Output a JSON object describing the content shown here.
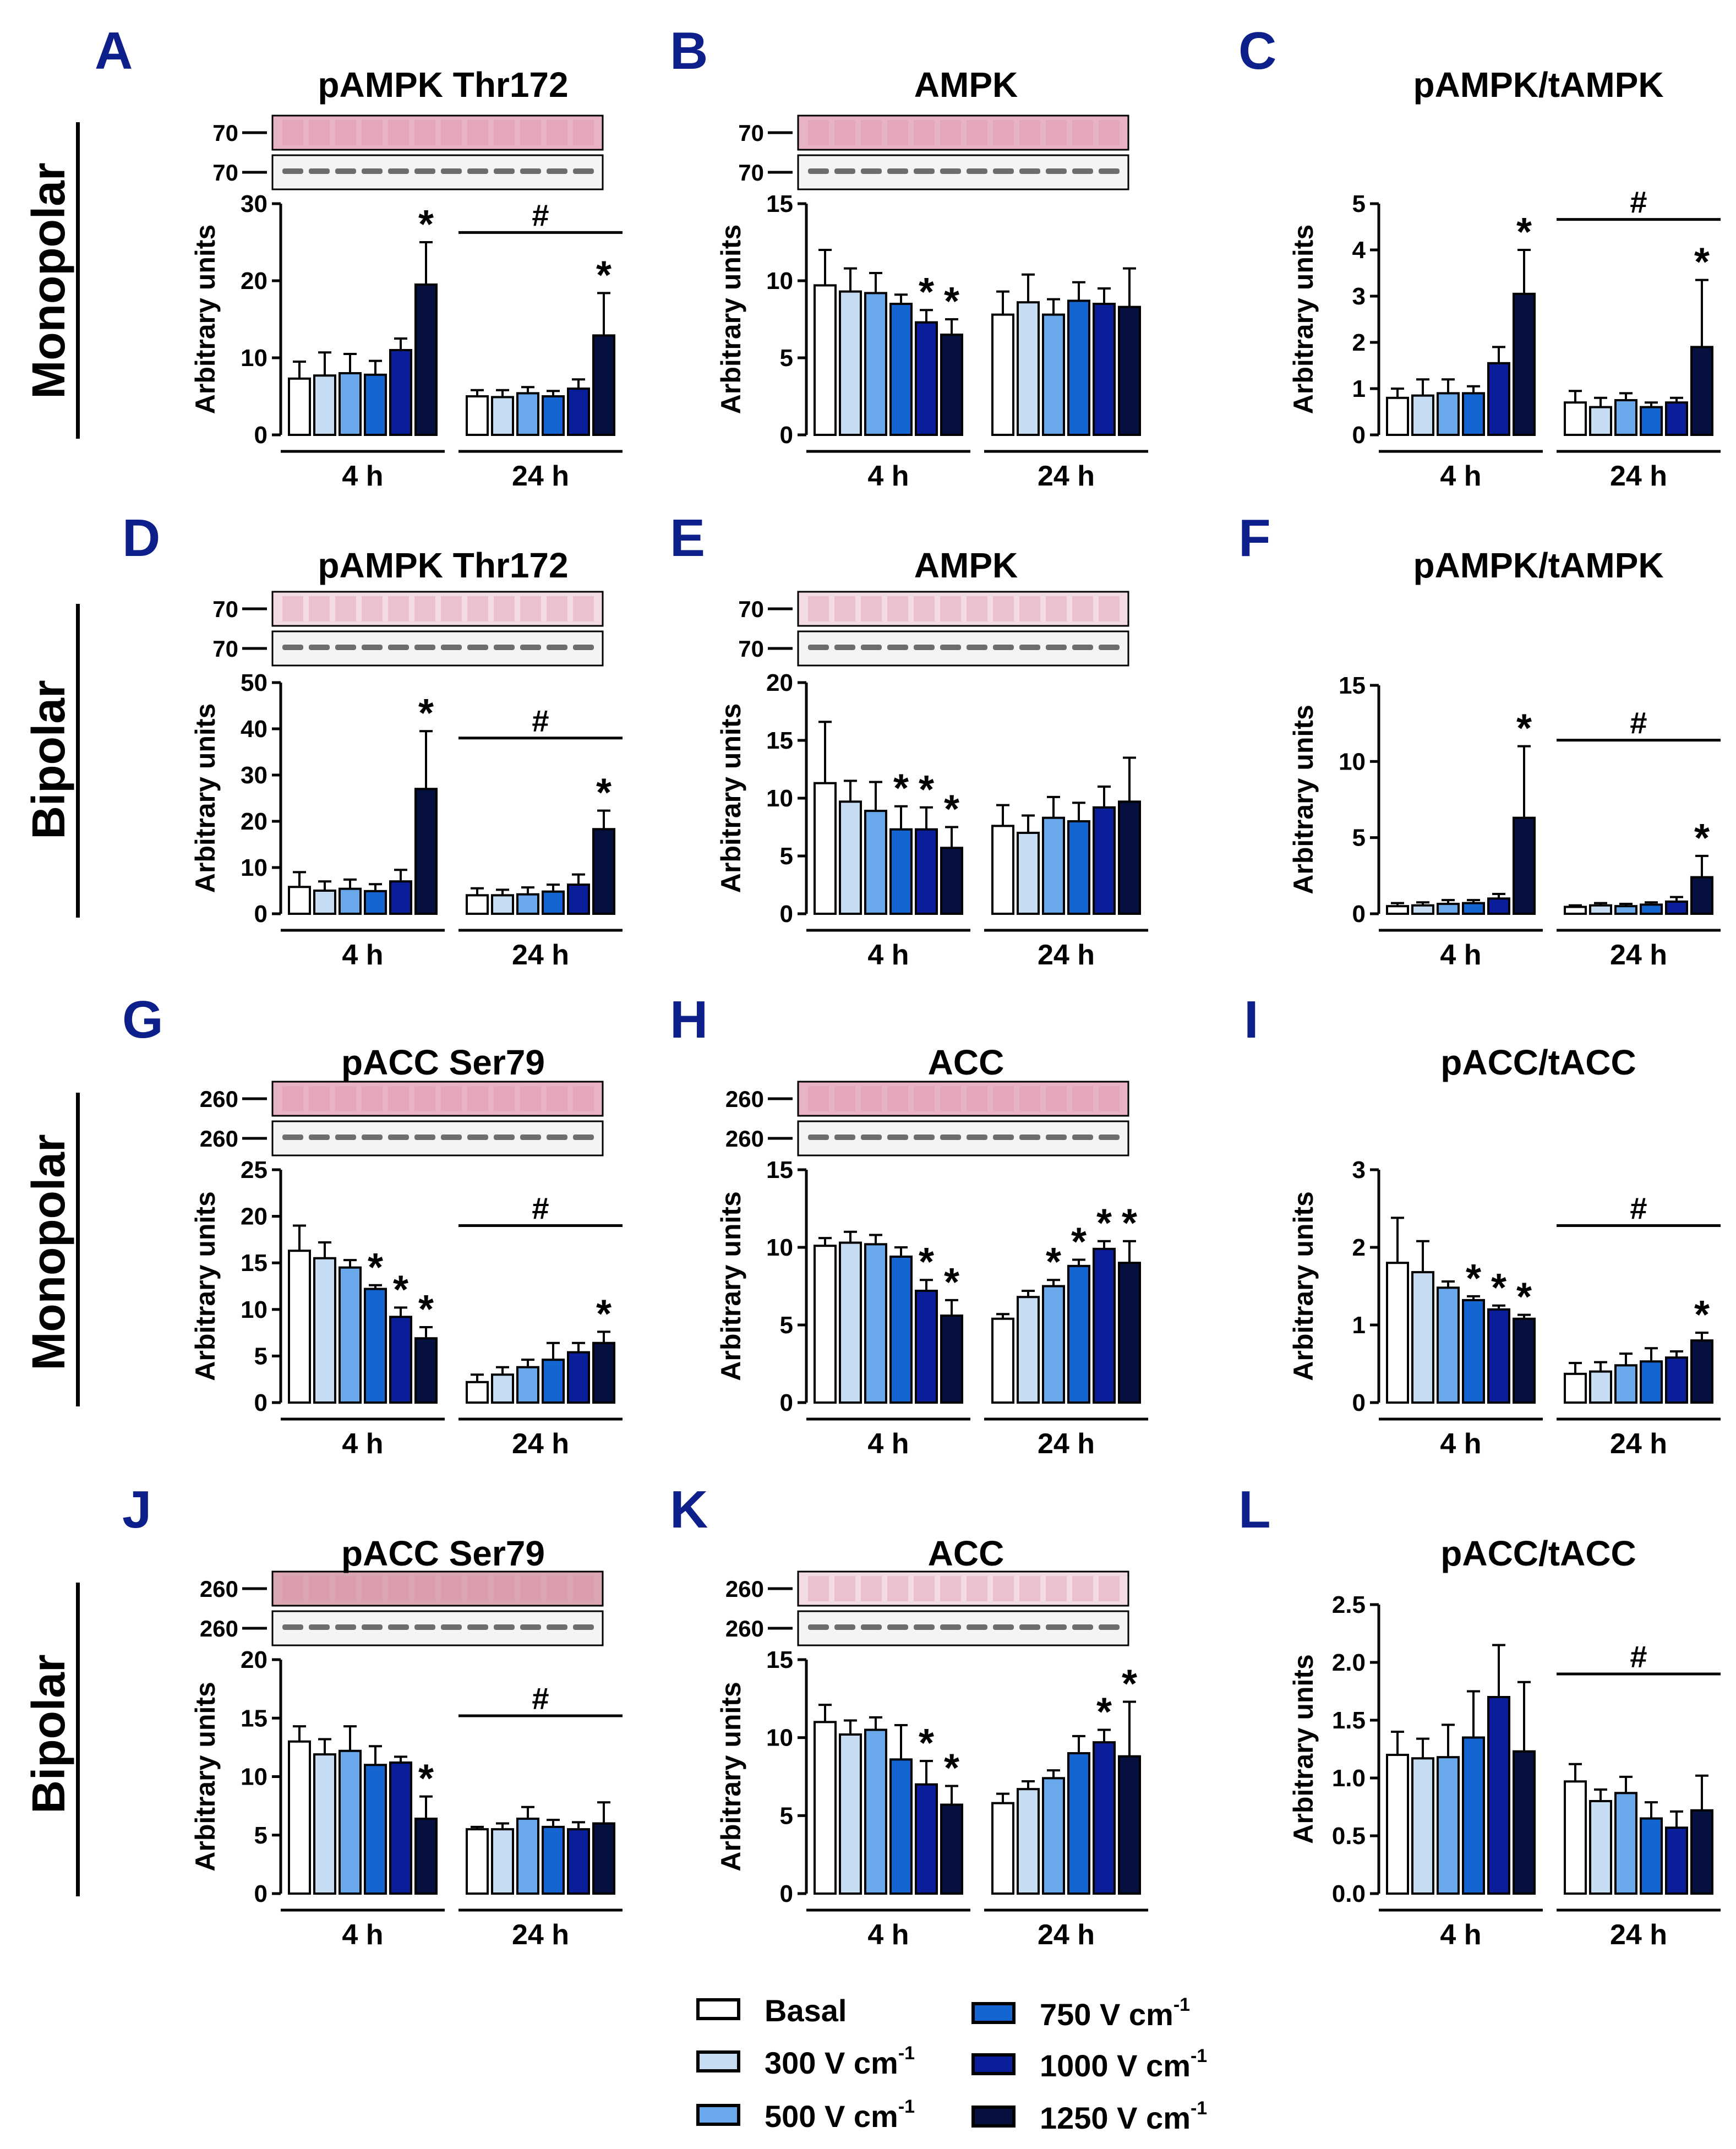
{
  "figure": {
    "row_labels": [
      "Monopolar",
      "Bipolar",
      "Monopolar",
      "Bipolar"
    ],
    "time_groups": [
      "4 h",
      "24 h"
    ],
    "ylabel": "Arbitrary units",
    "colors": [
      "#ffffff",
      "#c6dcf3",
      "#6aa8ec",
      "#1565d0",
      "#0b1e9a",
      "#06103f"
    ]
  },
  "legend": {
    "items": [
      {
        "label": "Basal",
        "exp": ""
      },
      {
        "label": "300 V cm",
        "exp": "-1"
      },
      {
        "label": "500 V cm",
        "exp": "-1"
      },
      {
        "label": "750 V cm",
        "exp": "-1"
      },
      {
        "label": "1000 V cm",
        "exp": "-1"
      },
      {
        "label": "1250 V cm",
        "exp": "-1"
      }
    ]
  },
  "chart_data": [
    {
      "panel": "A",
      "title": "pAMPK Thr172",
      "type": "bar",
      "blot_markers": [
        "70",
        "70"
      ],
      "blot_style": "ponceau",
      "ylim": [
        0,
        30
      ],
      "yticks": [
        "0",
        "10",
        "20",
        "30"
      ],
      "series": [
        {
          "name": "4 h",
          "values": [
            7.3,
            7.7,
            8.0,
            7.8,
            11.0,
            19.5
          ],
          "errors": [
            2.2,
            3.0,
            2.5,
            1.8,
            1.5,
            5.5
          ],
          "sig": [
            "",
            "",
            "",
            "",
            "",
            "*"
          ]
        },
        {
          "name": "24 h",
          "values": [
            5.0,
            4.9,
            5.4,
            5.0,
            6.0,
            12.9
          ],
          "errors": [
            0.8,
            0.9,
            0.8,
            0.7,
            1.2,
            5.5
          ],
          "sig": [
            "",
            "",
            "",
            "",
            "",
            "*"
          ]
        }
      ],
      "hash_24h": "#"
    },
    {
      "panel": "B",
      "title": "AMPK",
      "type": "bar",
      "blot_markers": [
        "70",
        "70"
      ],
      "blot_style": "ponceau",
      "ylim": [
        0,
        15
      ],
      "yticks": [
        "0",
        "5",
        "10",
        "15"
      ],
      "series": [
        {
          "name": "4 h",
          "values": [
            9.7,
            9.3,
            9.2,
            8.5,
            7.3,
            6.5
          ],
          "errors": [
            2.3,
            1.5,
            1.3,
            0.6,
            0.8,
            1.0
          ],
          "sig": [
            "",
            "",
            "",
            "",
            "*",
            "*"
          ]
        },
        {
          "name": "24 h",
          "values": [
            7.8,
            8.6,
            7.8,
            8.7,
            8.5,
            8.3
          ],
          "errors": [
            1.5,
            1.8,
            1.0,
            1.2,
            1.0,
            2.5
          ],
          "sig": [
            "",
            "",
            "",
            "",
            "",
            ""
          ]
        }
      ],
      "hash_24h": ""
    },
    {
      "panel": "C",
      "title": "pAMPK/tAMPK",
      "type": "bar",
      "blot_markers": [],
      "blot_style": "none",
      "ylim": [
        0,
        5
      ],
      "yticks": [
        "0",
        "1",
        "2",
        "3",
        "4",
        "5"
      ],
      "series": [
        {
          "name": "4 h",
          "values": [
            0.8,
            0.85,
            0.9,
            0.9,
            1.55,
            3.05
          ],
          "errors": [
            0.2,
            0.35,
            0.3,
            0.15,
            0.35,
            0.95
          ],
          "sig": [
            "",
            "",
            "",
            "",
            "",
            "*"
          ]
        },
        {
          "name": "24 h",
          "values": [
            0.7,
            0.6,
            0.75,
            0.6,
            0.7,
            1.9
          ],
          "errors": [
            0.25,
            0.2,
            0.15,
            0.1,
            0.1,
            1.45
          ],
          "sig": [
            "",
            "",
            "",
            "",
            "",
            "*"
          ]
        }
      ],
      "hash_24h": "#"
    },
    {
      "panel": "D",
      "title": "pAMPK Thr172",
      "type": "bar",
      "blot_markers": [
        "70",
        "70"
      ],
      "blot_style": "ponceau_light",
      "ylim": [
        0,
        50
      ],
      "yticks": [
        "0",
        "10",
        "20",
        "30",
        "40",
        "50"
      ],
      "series": [
        {
          "name": "4 h",
          "values": [
            5.8,
            5.0,
            5.4,
            4.9,
            7.0,
            27.0
          ],
          "errors": [
            3.2,
            2.0,
            2.0,
            1.5,
            2.5,
            12.5
          ],
          "sig": [
            "",
            "",
            "",
            "",
            "",
            "*"
          ]
        },
        {
          "name": "24 h",
          "values": [
            4.0,
            4.0,
            4.2,
            4.8,
            6.3,
            18.3
          ],
          "errors": [
            1.5,
            1.2,
            1.5,
            1.5,
            2.2,
            4.0
          ],
          "sig": [
            "",
            "",
            "",
            "",
            "",
            "*"
          ]
        }
      ],
      "hash_24h": "#"
    },
    {
      "panel": "E",
      "title": "AMPK",
      "type": "bar",
      "blot_markers": [
        "70",
        "70"
      ],
      "blot_style": "ponceau_light",
      "ylim": [
        0,
        20
      ],
      "yticks": [
        "0",
        "5",
        "10",
        "15",
        "20"
      ],
      "series": [
        {
          "name": "4 h",
          "values": [
            11.3,
            9.7,
            8.9,
            7.3,
            7.3,
            5.7
          ],
          "errors": [
            5.3,
            1.8,
            2.5,
            2.0,
            1.9,
            1.8
          ],
          "sig": [
            "",
            "",
            "",
            "*",
            "*",
            "*"
          ]
        },
        {
          "name": "24 h",
          "values": [
            7.6,
            7.0,
            8.3,
            8.0,
            9.2,
            9.7
          ],
          "errors": [
            1.8,
            1.5,
            1.8,
            1.6,
            1.8,
            3.8
          ],
          "sig": [
            "",
            "",
            "",
            "",
            "",
            ""
          ]
        }
      ],
      "hash_24h": ""
    },
    {
      "panel": "F",
      "title": "pAMPK/tAMPK",
      "type": "bar",
      "blot_markers": [],
      "blot_style": "none",
      "ylim": [
        0,
        15
      ],
      "yticks": [
        "0",
        "5",
        "10",
        "15"
      ],
      "series": [
        {
          "name": "4 h",
          "values": [
            0.5,
            0.55,
            0.65,
            0.7,
            1.0,
            6.3
          ],
          "errors": [
            0.2,
            0.2,
            0.25,
            0.2,
            0.3,
            4.7
          ],
          "sig": [
            "",
            "",
            "",
            "",
            "",
            "*"
          ]
        },
        {
          "name": "24 h",
          "values": [
            0.45,
            0.55,
            0.5,
            0.6,
            0.8,
            2.4
          ],
          "errors": [
            0.1,
            0.15,
            0.15,
            0.15,
            0.3,
            1.4
          ],
          "sig": [
            "",
            "",
            "",
            "",
            "",
            "*"
          ]
        }
      ],
      "hash_24h": "#"
    },
    {
      "panel": "G",
      "title": "pACC Ser79",
      "type": "bar",
      "blot_markers": [
        "260",
        "260"
      ],
      "blot_style": "ponceau",
      "ylim": [
        0,
        25
      ],
      "yticks": [
        "0",
        "5",
        "10",
        "15",
        "20",
        "25"
      ],
      "series": [
        {
          "name": "4 h",
          "values": [
            16.3,
            15.5,
            14.5,
            12.2,
            9.2,
            6.9
          ],
          "errors": [
            2.7,
            1.7,
            0.8,
            0.4,
            1.0,
            1.2
          ],
          "sig": [
            "",
            "",
            "",
            "*",
            "*",
            "*"
          ]
        },
        {
          "name": "24 h",
          "values": [
            2.2,
            3.0,
            3.8,
            4.6,
            5.4,
            6.4
          ],
          "errors": [
            0.8,
            0.8,
            0.8,
            1.8,
            1.0,
            1.2
          ],
          "sig": [
            "",
            "",
            "",
            "",
            "",
            "*"
          ]
        }
      ],
      "hash_24h": "#"
    },
    {
      "panel": "H",
      "title": "ACC",
      "type": "bar",
      "blot_markers": [
        "260",
        "260"
      ],
      "blot_style": "ponceau",
      "ylim": [
        0,
        15
      ],
      "yticks": [
        "0",
        "5",
        "10",
        "15"
      ],
      "series": [
        {
          "name": "4 h",
          "values": [
            10.1,
            10.3,
            10.2,
            9.4,
            7.2,
            5.6
          ],
          "errors": [
            0.5,
            0.7,
            0.6,
            0.6,
            0.7,
            1.0
          ],
          "sig": [
            "",
            "",
            "",
            "",
            "*",
            "*"
          ]
        },
        {
          "name": "24 h",
          "values": [
            5.4,
            6.8,
            7.5,
            8.8,
            9.9,
            9.0
          ],
          "errors": [
            0.3,
            0.4,
            0.4,
            0.4,
            0.5,
            1.4
          ],
          "sig": [
            "",
            "",
            "*",
            "*",
            "*",
            "*"
          ]
        }
      ],
      "hash_24h": ""
    },
    {
      "panel": "I",
      "title": "pACC/tACC",
      "type": "bar",
      "blot_markers": [],
      "blot_style": "none",
      "ylim": [
        0,
        3
      ],
      "yticks": [
        "0",
        "1",
        "2",
        "3"
      ],
      "series": [
        {
          "name": "4 h",
          "values": [
            1.8,
            1.68,
            1.48,
            1.32,
            1.2,
            1.08
          ],
          "errors": [
            0.58,
            0.4,
            0.08,
            0.05,
            0.05,
            0.05
          ],
          "sig": [
            "",
            "",
            "",
            "*",
            "*",
            "*"
          ]
        },
        {
          "name": "24 h",
          "values": [
            0.37,
            0.4,
            0.48,
            0.53,
            0.58,
            0.8
          ],
          "errors": [
            0.14,
            0.12,
            0.15,
            0.17,
            0.08,
            0.1
          ],
          "sig": [
            "",
            "",
            "",
            "",
            "",
            "*"
          ]
        }
      ],
      "hash_24h": "#"
    },
    {
      "panel": "J",
      "title": "pACC Ser79",
      "type": "bar",
      "blot_markers": [
        "260",
        "260"
      ],
      "blot_style": "ponceau_dark",
      "ylim": [
        0,
        20
      ],
      "yticks": [
        "0",
        "5",
        "10",
        "15",
        "20"
      ],
      "series": [
        {
          "name": "4 h",
          "values": [
            13.0,
            11.9,
            12.2,
            11.0,
            11.2,
            6.4
          ],
          "errors": [
            1.3,
            1.3,
            2.1,
            1.6,
            0.5,
            1.9
          ],
          "sig": [
            "",
            "",
            "",
            "",
            "",
            "*"
          ]
        },
        {
          "name": "24 h",
          "values": [
            5.5,
            5.5,
            6.4,
            5.7,
            5.5,
            6.0
          ],
          "errors": [
            0.2,
            0.5,
            1.0,
            0.6,
            0.6,
            1.8
          ],
          "sig": [
            "",
            "",
            "",
            "",
            "",
            ""
          ]
        }
      ],
      "hash_24h": "#"
    },
    {
      "panel": "K",
      "title": "ACC",
      "type": "bar",
      "blot_markers": [
        "260",
        "260"
      ],
      "blot_style": "ponceau_light",
      "ylim": [
        0,
        15
      ],
      "yticks": [
        "0",
        "5",
        "10",
        "15"
      ],
      "series": [
        {
          "name": "4 h",
          "values": [
            11.0,
            10.2,
            10.5,
            8.6,
            7.0,
            5.7
          ],
          "errors": [
            1.1,
            0.9,
            0.8,
            2.2,
            1.5,
            1.2
          ],
          "sig": [
            "",
            "",
            "",
            "",
            "*",
            "*"
          ]
        },
        {
          "name": "24 h",
          "values": [
            5.8,
            6.7,
            7.4,
            9.0,
            9.7,
            8.8
          ],
          "errors": [
            0.6,
            0.5,
            0.5,
            1.1,
            0.8,
            3.5
          ],
          "sig": [
            "",
            "",
            "",
            "",
            "*",
            "*"
          ]
        }
      ],
      "hash_24h": ""
    },
    {
      "panel": "L",
      "title": "pACC/tACC",
      "type": "bar",
      "blot_markers": [],
      "blot_style": "none",
      "ylim": [
        0,
        2.5
      ],
      "yticks": [
        "0.0",
        "0.5",
        "1.0",
        "1.5",
        "2.0",
        "2.5"
      ],
      "series": [
        {
          "name": "4 h",
          "values": [
            1.2,
            1.17,
            1.18,
            1.35,
            1.7,
            1.23
          ],
          "errors": [
            0.2,
            0.17,
            0.28,
            0.4,
            0.45,
            0.6
          ],
          "sig": [
            "",
            "",
            "",
            "",
            "",
            ""
          ]
        },
        {
          "name": "24 h",
          "values": [
            0.97,
            0.8,
            0.87,
            0.65,
            0.57,
            0.72
          ],
          "errors": [
            0.15,
            0.1,
            0.14,
            0.14,
            0.14,
            0.3
          ],
          "sig": [
            "",
            "",
            "",
            "",
            "",
            ""
          ]
        }
      ],
      "hash_24h": "#"
    }
  ]
}
